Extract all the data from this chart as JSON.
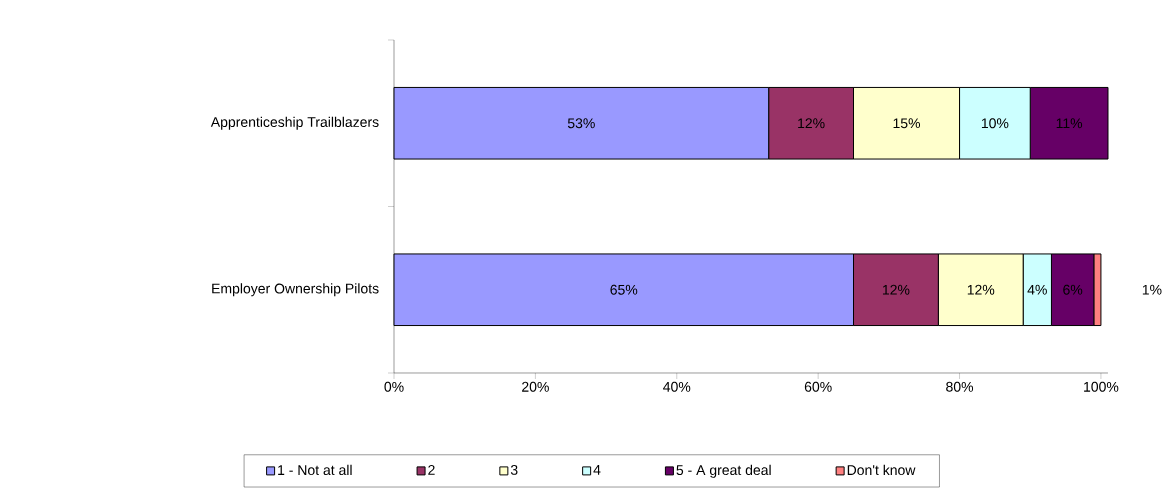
{
  "chart_data": {
    "type": "bar",
    "orientation": "horizontal",
    "stacked": true,
    "categories": [
      "Apprenticeship Trailblazers",
      "Employer Ownership Pilots"
    ],
    "series": [
      {
        "name": "1 - Not at all",
        "color": "#9999ff",
        "values": [
          53,
          65
        ],
        "value_labels": [
          "53%",
          "65%"
        ]
      },
      {
        "name": "2",
        "color": "#993366",
        "values": [
          12,
          12
        ],
        "value_labels": [
          "12%",
          "12%"
        ]
      },
      {
        "name": "3",
        "color": "#ffffcc",
        "values": [
          15,
          12
        ],
        "value_labels": [
          "15%",
          "12%"
        ]
      },
      {
        "name": "4",
        "color": "#ccffff",
        "values": [
          10,
          4
        ],
        "value_labels": [
          "10%",
          "4%"
        ]
      },
      {
        "name": "5 - A great deal",
        "color": "#660066",
        "values": [
          11,
          6
        ],
        "value_labels": [
          "11%",
          "6%"
        ]
      },
      {
        "name": "Don't know",
        "color": "#ff8080",
        "values": [
          null,
          1
        ],
        "value_labels": [
          null,
          "1%"
        ]
      }
    ],
    "xlim": [
      0,
      101
    ],
    "xticks": [
      {
        "value": 0,
        "label": "0%"
      },
      {
        "value": 20,
        "label": "20%"
      },
      {
        "value": 40,
        "label": "40%"
      },
      {
        "value": 60,
        "label": "60%"
      },
      {
        "value": 80,
        "label": "80%"
      },
      {
        "value": 100,
        "label": "100%"
      }
    ],
    "legend": "bottom"
  }
}
